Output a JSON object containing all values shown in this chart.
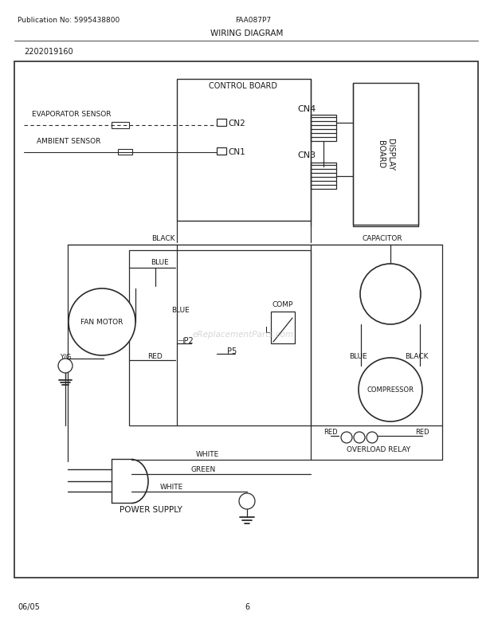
{
  "title": "WIRING DIAGRAM",
  "pub_no": "Publication No: 5995438800",
  "model": "FAA087P7",
  "part_no": "2202019160",
  "page": "6",
  "date": "06/05",
  "bg_color": "#ffffff",
  "line_color": "#2a2a2a",
  "text_color": "#1a1a1a"
}
